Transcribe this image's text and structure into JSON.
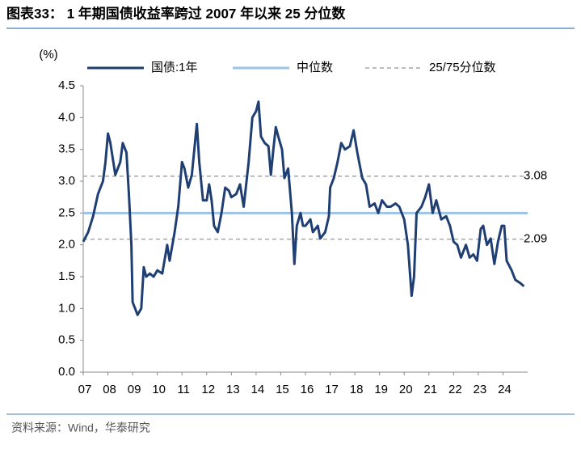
{
  "chart_data": {
    "type": "line",
    "title": "图表33： 1 年期国债收益率跨过 2007 年以来 25 分位数",
    "y_unit": "(%)",
    "source": "资料来源：Wind，华泰研究",
    "x": [
      7.0,
      7.2,
      7.4,
      7.6,
      7.8,
      7.9,
      8.0,
      8.1,
      8.3,
      8.5,
      8.6,
      8.75,
      8.85,
      8.95,
      9.0,
      9.1,
      9.2,
      9.35,
      9.45,
      9.55,
      9.7,
      9.85,
      10.0,
      10.2,
      10.4,
      10.5,
      10.7,
      10.85,
      11.0,
      11.1,
      11.25,
      11.4,
      11.5,
      11.6,
      11.7,
      11.85,
      12.0,
      12.1,
      12.2,
      12.3,
      12.45,
      12.6,
      12.75,
      12.9,
      13.0,
      13.2,
      13.35,
      13.5,
      13.7,
      13.85,
      14.0,
      14.1,
      14.2,
      14.35,
      14.5,
      14.6,
      14.7,
      14.8,
      14.9,
      15.05,
      15.15,
      15.3,
      15.45,
      15.55,
      15.65,
      15.8,
      15.9,
      16.0,
      16.2,
      16.3,
      16.5,
      16.6,
      16.8,
      16.95,
      17.0,
      17.15,
      17.3,
      17.45,
      17.6,
      17.8,
      17.95,
      18.1,
      18.3,
      18.45,
      18.6,
      18.8,
      18.95,
      19.1,
      19.3,
      19.45,
      19.65,
      19.8,
      20.0,
      20.15,
      20.3,
      20.4,
      20.5,
      20.7,
      20.85,
      21.0,
      21.15,
      21.3,
      21.5,
      21.7,
      21.85,
      22.0,
      22.15,
      22.3,
      22.5,
      22.65,
      22.8,
      22.95,
      23.1,
      23.2,
      23.35,
      23.5,
      23.65,
      23.8,
      23.95,
      24.05,
      24.15,
      24.35,
      24.5,
      24.7,
      24.85
    ],
    "series": [
      {
        "name": "国债:1年",
        "color": "#1f3f73",
        "values": [
          2.05,
          2.2,
          2.45,
          2.8,
          3.0,
          3.3,
          3.75,
          3.6,
          3.1,
          3.3,
          3.6,
          3.45,
          2.8,
          2.0,
          1.1,
          1.0,
          0.9,
          1.0,
          1.65,
          1.5,
          1.55,
          1.5,
          1.6,
          1.55,
          2.0,
          1.75,
          2.2,
          2.6,
          3.3,
          3.2,
          2.9,
          3.1,
          3.5,
          3.9,
          3.3,
          2.7,
          2.7,
          2.95,
          2.7,
          2.3,
          2.2,
          2.5,
          2.9,
          2.85,
          2.75,
          2.8,
          2.95,
          2.6,
          3.3,
          4.0,
          4.1,
          4.25,
          3.7,
          3.6,
          3.55,
          3.1,
          3.5,
          3.85,
          3.7,
          3.5,
          3.05,
          3.2,
          2.5,
          1.7,
          2.3,
          2.5,
          2.3,
          2.3,
          2.4,
          2.2,
          2.3,
          2.1,
          2.2,
          2.45,
          2.9,
          3.05,
          3.3,
          3.6,
          3.5,
          3.55,
          3.8,
          3.45,
          3.05,
          2.95,
          2.6,
          2.65,
          2.5,
          2.7,
          2.6,
          2.6,
          2.65,
          2.6,
          2.4,
          2.0,
          1.2,
          1.5,
          2.5,
          2.6,
          2.75,
          2.95,
          2.5,
          2.7,
          2.4,
          2.45,
          2.3,
          2.05,
          2.0,
          1.8,
          2.0,
          1.8,
          1.85,
          1.75,
          2.25,
          2.3,
          2.0,
          2.1,
          1.7,
          2.05,
          2.3,
          2.3,
          1.75,
          1.6,
          1.45,
          1.4,
          1.35
        ]
      }
    ],
    "reference_lines": [
      {
        "name": "中位数",
        "color": "#9dc3e6",
        "dashed": false,
        "show_labels": false,
        "values": [
          2.5
        ]
      },
      {
        "name": "25/75分位数",
        "color": "#a6a6a6",
        "dashed": true,
        "show_labels": true,
        "values": [
          2.09,
          3.08
        ]
      }
    ],
    "xlim": [
      7,
      25
    ],
    "xticks": [
      {
        "value": 7,
        "label": "07"
      },
      {
        "value": 8,
        "label": "08"
      },
      {
        "value": 9,
        "label": "09"
      },
      10,
      11,
      12,
      13,
      14,
      15,
      16,
      17,
      18,
      19,
      20,
      21,
      22,
      23,
      24
    ],
    "ylim": [
      0,
      4.5
    ],
    "yticks": [
      {
        "value": 0,
        "label": "0.0"
      },
      0.5,
      {
        "value": 1,
        "label": "1.0"
      },
      1.5,
      {
        "value": 2,
        "label": "2.0"
      },
      2.5,
      {
        "value": 3,
        "label": "3.0"
      },
      3.5,
      {
        "value": 4,
        "label": "4.0"
      },
      4.5
    ],
    "grid": false
  }
}
